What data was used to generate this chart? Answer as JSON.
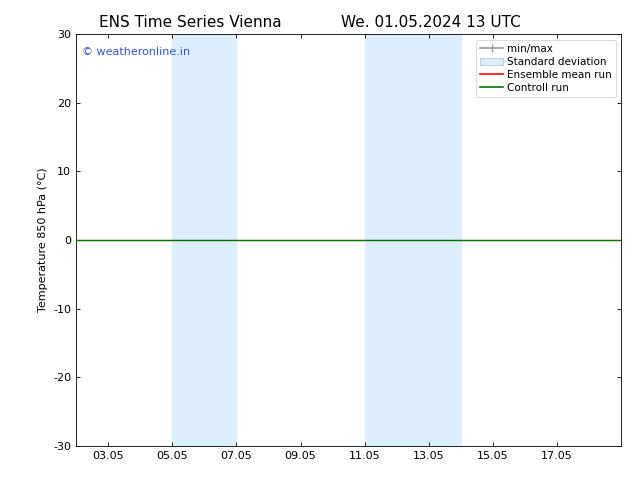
{
  "title_left": "ENS Time Series Vienna",
  "title_right": "We. 01.05.2024 13 UTC",
  "ylabel": "Temperature 850 hPa (°C)",
  "ylim": [
    -30,
    30
  ],
  "yticks": [
    -30,
    -20,
    -10,
    0,
    10,
    20,
    30
  ],
  "xtick_labels": [
    "03.05",
    "05.05",
    "07.05",
    "09.05",
    "11.05",
    "13.05",
    "15.05",
    "17.05"
  ],
  "xtick_positions": [
    2,
    4,
    6,
    8,
    10,
    12,
    14,
    16
  ],
  "x_min": 1.0,
  "x_max": 18.0,
  "shaded_bands": [
    {
      "x_start": 4.0,
      "x_end": 6.0
    },
    {
      "x_start": 10.0,
      "x_end": 13.0
    }
  ],
  "control_run_y": 0.0,
  "bg_color": "#ffffff",
  "shade_color": "#ddeeff",
  "watermark_text": "© weatheronline.in",
  "watermark_color": "#3355cc",
  "legend_labels": [
    "min/max",
    "Standard deviation",
    "Ensemble mean run",
    "Controll run"
  ],
  "legend_colors": [
    "#999999",
    "#ccddf0",
    "#ff0000",
    "#007700"
  ],
  "title_fontsize": 11,
  "axis_label_fontsize": 8,
  "tick_fontsize": 8,
  "legend_fontsize": 7.5,
  "watermark_fontsize": 8
}
